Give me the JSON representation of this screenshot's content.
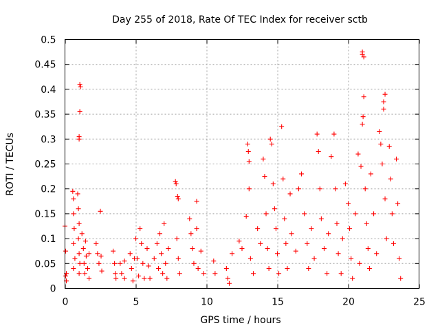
{
  "chart_data": {
    "type": "scatter",
    "title": "Day 255 of 2018, Rate Of TEC Index for receiver sctb",
    "xlabel": "GPS time / hours",
    "ylabel": "ROTI / TECUs",
    "xlim": [
      0,
      25
    ],
    "ylim": [
      0,
      0.5
    ],
    "xticks": [
      0,
      5,
      10,
      15,
      20,
      25
    ],
    "yticks": [
      0,
      0.05,
      0.1,
      0.15,
      0.2,
      0.25,
      0.3,
      0.35,
      0.4,
      0.45,
      0.5
    ],
    "xtick_labels": [
      "0",
      "5",
      "10",
      "15",
      "20",
      "25"
    ],
    "ytick_labels": [
      "0",
      "0.05",
      "0.1",
      "0.15",
      "0.2",
      "0.25",
      "0.3",
      "0.35",
      "0.4",
      "0.45",
      "0.5"
    ],
    "grid": true,
    "marker": "+",
    "marker_color": "#ff0000",
    "series": [
      {
        "name": "ROTI",
        "points": [
          [
            0.0,
            0.125
          ],
          [
            0.05,
            0.075
          ],
          [
            0.05,
            0.025
          ],
          [
            0.1,
            0.03
          ],
          [
            0.1,
            0.015
          ],
          [
            0.55,
            0.195
          ],
          [
            0.6,
            0.18
          ],
          [
            0.6,
            0.15
          ],
          [
            0.65,
            0.12
          ],
          [
            0.6,
            0.09
          ],
          [
            0.7,
            0.06
          ],
          [
            0.6,
            0.04
          ],
          [
            0.9,
            0.19
          ],
          [
            0.95,
            0.16
          ],
          [
            1.0,
            0.13
          ],
          [
            0.95,
            0.1
          ],
          [
            1.0,
            0.07
          ],
          [
            1.05,
            0.05
          ],
          [
            1.0,
            0.03
          ],
          [
            1.0,
            0.305
          ],
          [
            1.0,
            0.3
          ],
          [
            1.05,
            0.355
          ],
          [
            1.05,
            0.41
          ],
          [
            1.1,
            0.405
          ],
          [
            1.2,
            0.11
          ],
          [
            1.3,
            0.08
          ],
          [
            1.35,
            0.05
          ],
          [
            1.4,
            0.03
          ],
          [
            1.45,
            0.095
          ],
          [
            1.5,
            0.065
          ],
          [
            1.6,
            0.04
          ],
          [
            1.7,
            0.07
          ],
          [
            1.7,
            0.02
          ],
          [
            2.2,
            0.09
          ],
          [
            2.3,
            0.07
          ],
          [
            2.4,
            0.05
          ],
          [
            2.5,
            0.155
          ],
          [
            2.55,
            0.065
          ],
          [
            2.6,
            0.035
          ],
          [
            3.4,
            0.075
          ],
          [
            3.5,
            0.05
          ],
          [
            3.55,
            0.03
          ],
          [
            3.6,
            0.02
          ],
          [
            3.9,
            0.05
          ],
          [
            4.0,
            0.03
          ],
          [
            4.2,
            0.055
          ],
          [
            4.2,
            0.02
          ],
          [
            4.6,
            0.07
          ],
          [
            4.7,
            0.04
          ],
          [
            4.8,
            0.015
          ],
          [
            4.9,
            0.06
          ],
          [
            5.0,
            0.1
          ],
          [
            5.1,
            0.06
          ],
          [
            5.2,
            0.025
          ],
          [
            5.3,
            0.12
          ],
          [
            5.4,
            0.09
          ],
          [
            5.5,
            0.05
          ],
          [
            5.6,
            0.02
          ],
          [
            5.8,
            0.08
          ],
          [
            5.9,
            0.045
          ],
          [
            6.0,
            0.02
          ],
          [
            6.3,
            0.06
          ],
          [
            6.5,
            0.09
          ],
          [
            6.6,
            0.04
          ],
          [
            6.7,
            0.11
          ],
          [
            6.8,
            0.07
          ],
          [
            6.9,
            0.03
          ],
          [
            7.0,
            0.13
          ],
          [
            7.1,
            0.05
          ],
          [
            7.2,
            0.02
          ],
          [
            7.3,
            0.08
          ],
          [
            7.8,
            0.215
          ],
          [
            7.85,
            0.21
          ],
          [
            7.95,
            0.185
          ],
          [
            8.0,
            0.18
          ],
          [
            7.9,
            0.1
          ],
          [
            8.0,
            0.06
          ],
          [
            8.1,
            0.03
          ],
          [
            8.8,
            0.14
          ],
          [
            8.9,
            0.11
          ],
          [
            9.0,
            0.08
          ],
          [
            9.1,
            0.05
          ],
          [
            9.3,
            0.175
          ],
          [
            9.3,
            0.12
          ],
          [
            9.4,
            0.04
          ],
          [
            9.6,
            0.075
          ],
          [
            9.8,
            0.03
          ],
          [
            10.5,
            0.055
          ],
          [
            10.6,
            0.03
          ],
          [
            11.4,
            0.04
          ],
          [
            11.5,
            0.02
          ],
          [
            11.6,
            0.01
          ],
          [
            11.8,
            0.07
          ],
          [
            12.3,
            0.095
          ],
          [
            12.5,
            0.08
          ],
          [
            12.9,
            0.29
          ],
          [
            12.95,
            0.275
          ],
          [
            13.0,
            0.255
          ],
          [
            13.0,
            0.2
          ],
          [
            12.8,
            0.145
          ],
          [
            13.1,
            0.06
          ],
          [
            13.3,
            0.03
          ],
          [
            13.6,
            0.12
          ],
          [
            13.8,
            0.09
          ],
          [
            14.0,
            0.26
          ],
          [
            14.1,
            0.225
          ],
          [
            14.2,
            0.15
          ],
          [
            14.3,
            0.08
          ],
          [
            14.4,
            0.04
          ],
          [
            14.5,
            0.3
          ],
          [
            14.6,
            0.29
          ],
          [
            14.7,
            0.21
          ],
          [
            14.8,
            0.16
          ],
          [
            14.9,
            0.12
          ],
          [
            15.0,
            0.07
          ],
          [
            15.1,
            0.03
          ],
          [
            15.3,
            0.325
          ],
          [
            15.4,
            0.22
          ],
          [
            15.5,
            0.14
          ],
          [
            15.6,
            0.09
          ],
          [
            15.7,
            0.04
          ],
          [
            15.9,
            0.19
          ],
          [
            16.0,
            0.11
          ],
          [
            16.3,
            0.075
          ],
          [
            16.5,
            0.2
          ],
          [
            16.7,
            0.23
          ],
          [
            16.9,
            0.15
          ],
          [
            17.1,
            0.09
          ],
          [
            17.2,
            0.04
          ],
          [
            17.4,
            0.12
          ],
          [
            17.6,
            0.06
          ],
          [
            17.8,
            0.31
          ],
          [
            17.9,
            0.275
          ],
          [
            18.0,
            0.2
          ],
          [
            18.1,
            0.14
          ],
          [
            18.3,
            0.08
          ],
          [
            18.5,
            0.03
          ],
          [
            18.6,
            0.11
          ],
          [
            18.8,
            0.265
          ],
          [
            19.0,
            0.31
          ],
          [
            19.1,
            0.2
          ],
          [
            19.2,
            0.13
          ],
          [
            19.3,
            0.07
          ],
          [
            19.5,
            0.03
          ],
          [
            19.6,
            0.1
          ],
          [
            19.8,
            0.21
          ],
          [
            20.0,
            0.17
          ],
          [
            20.1,
            0.12
          ],
          [
            20.2,
            0.06
          ],
          [
            20.3,
            0.02
          ],
          [
            20.5,
            0.15
          ],
          [
            20.7,
            0.27
          ],
          [
            20.8,
            0.05
          ],
          [
            20.9,
            0.245
          ],
          [
            21.0,
            0.33
          ],
          [
            21.05,
            0.345
          ],
          [
            21.1,
            0.385
          ],
          [
            21.0,
            0.475
          ],
          [
            21.1,
            0.465
          ],
          [
            21.0,
            0.47
          ],
          [
            21.2,
            0.2
          ],
          [
            21.3,
            0.13
          ],
          [
            21.4,
            0.08
          ],
          [
            21.5,
            0.04
          ],
          [
            21.6,
            0.23
          ],
          [
            21.8,
            0.15
          ],
          [
            22.0,
            0.07
          ],
          [
            22.2,
            0.315
          ],
          [
            22.3,
            0.29
          ],
          [
            22.4,
            0.25
          ],
          [
            22.5,
            0.36
          ],
          [
            22.6,
            0.39
          ],
          [
            22.5,
            0.375
          ],
          [
            22.6,
            0.18
          ],
          [
            22.7,
            0.1
          ],
          [
            22.9,
            0.285
          ],
          [
            23.0,
            0.22
          ],
          [
            23.1,
            0.15
          ],
          [
            23.2,
            0.09
          ],
          [
            23.4,
            0.26
          ],
          [
            23.5,
            0.17
          ],
          [
            23.6,
            0.06
          ],
          [
            23.7,
            0.02
          ]
        ]
      }
    ]
  }
}
